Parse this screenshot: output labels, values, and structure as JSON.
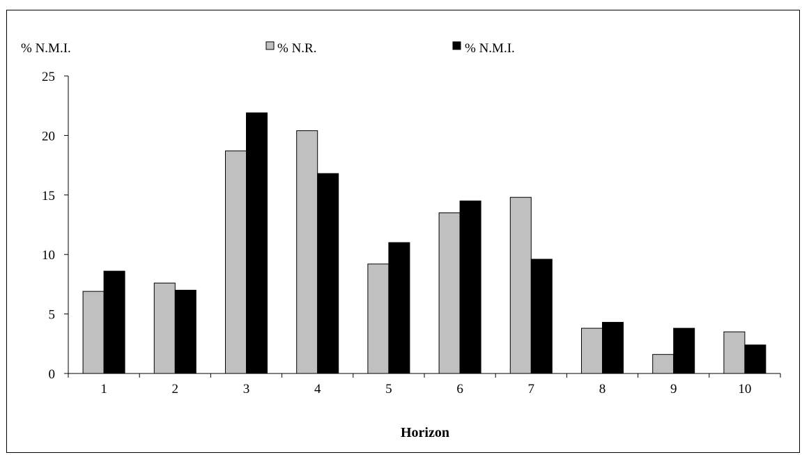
{
  "chart_data": {
    "type": "bar",
    "title": "",
    "ylabel": "% N.M.I.",
    "xlabel": "Horizon",
    "categories": [
      "1",
      "2",
      "3",
      "4",
      "5",
      "6",
      "7",
      "8",
      "9",
      "10"
    ],
    "series": [
      {
        "name": "% N.R.",
        "color": "#c0c0c0",
        "values": [
          6.9,
          7.6,
          18.7,
          20.4,
          9.2,
          13.5,
          14.8,
          3.8,
          1.6,
          3.5
        ]
      },
      {
        "name": "% N.M.I.",
        "color": "#000000",
        "values": [
          8.6,
          7.0,
          21.9,
          16.8,
          11.0,
          14.5,
          9.6,
          4.3,
          3.8,
          2.4
        ]
      }
    ],
    "ylim": [
      0,
      25
    ],
    "yticks": [
      "0",
      "5",
      "10",
      "15",
      "20",
      "25"
    ],
    "ytick_values": [
      0,
      5,
      10,
      15,
      20,
      25
    ],
    "grid": false,
    "legend_position": "top"
  }
}
